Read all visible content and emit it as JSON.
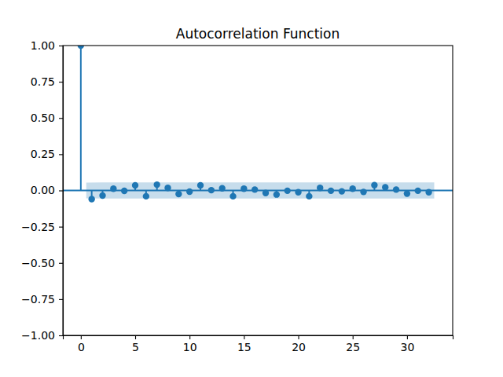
{
  "chart_data": {
    "type": "stem",
    "title": "Autocorrelation Function",
    "x": [
      0,
      1,
      2,
      3,
      4,
      5,
      6,
      7,
      8,
      9,
      10,
      11,
      12,
      13,
      14,
      15,
      16,
      17,
      18,
      19,
      20,
      21,
      22,
      23,
      24,
      25,
      26,
      27,
      28,
      29,
      30,
      31,
      32
    ],
    "values": [
      1.0,
      -0.06,
      -0.035,
      0.012,
      -0.003,
      0.035,
      -0.04,
      0.04,
      0.018,
      -0.024,
      -0.008,
      0.035,
      0.002,
      0.015,
      -0.04,
      0.012,
      0.006,
      -0.018,
      -0.028,
      -0.002,
      -0.012,
      -0.04,
      0.018,
      -0.002,
      -0.006,
      0.012,
      -0.01,
      0.037,
      0.022,
      0.006,
      -0.022,
      -0.002,
      -0.012
    ],
    "confidence_x": [
      0.5,
      2,
      3,
      4,
      5,
      6,
      7,
      8,
      9,
      10,
      11,
      12,
      13,
      14,
      15,
      16,
      17,
      18,
      19,
      20,
      21,
      22,
      23,
      24,
      25,
      26,
      27,
      28,
      29,
      30,
      31,
      32.5
    ],
    "confidence_lower": [
      -0.054,
      -0.055,
      -0.055,
      -0.055,
      -0.055,
      -0.055,
      -0.055,
      -0.055,
      -0.055,
      -0.055,
      -0.055,
      -0.055,
      -0.056,
      -0.056,
      -0.056,
      -0.056,
      -0.056,
      -0.056,
      -0.056,
      -0.056,
      -0.056,
      -0.056,
      -0.056,
      -0.056,
      -0.056,
      -0.056,
      -0.056,
      -0.056,
      -0.056,
      -0.056,
      -0.056,
      -0.056
    ],
    "confidence_upper": [
      0.054,
      0.055,
      0.055,
      0.055,
      0.055,
      0.055,
      0.055,
      0.055,
      0.055,
      0.055,
      0.055,
      0.055,
      0.056,
      0.056,
      0.056,
      0.056,
      0.056,
      0.056,
      0.056,
      0.056,
      0.056,
      0.056,
      0.056,
      0.056,
      0.056,
      0.056,
      0.056,
      0.056,
      0.056,
      0.056,
      0.056,
      0.056
    ],
    "color": "#1f77b4",
    "marker": "circle",
    "xlim": [
      -1.65,
      34.2
    ],
    "ylim": [
      -1,
      1
    ],
    "xticks": [
      0,
      5,
      10,
      15,
      20,
      25,
      30
    ],
    "yticks": [
      {
        "value": -1,
        "label": "−1.00"
      },
      {
        "value": -0.75,
        "label": "−0.75"
      },
      {
        "value": -0.5,
        "label": "−0.50"
      },
      {
        "value": -0.25,
        "label": "−0.25"
      },
      {
        "value": 0,
        "label": "0.00"
      },
      {
        "value": 0.25,
        "label": "0.25"
      },
      {
        "value": 0.5,
        "label": "0.50"
      },
      {
        "value": 0.75,
        "label": "0.75"
      },
      {
        "value": 1,
        "label": "1.00"
      }
    ],
    "grid": false
  }
}
